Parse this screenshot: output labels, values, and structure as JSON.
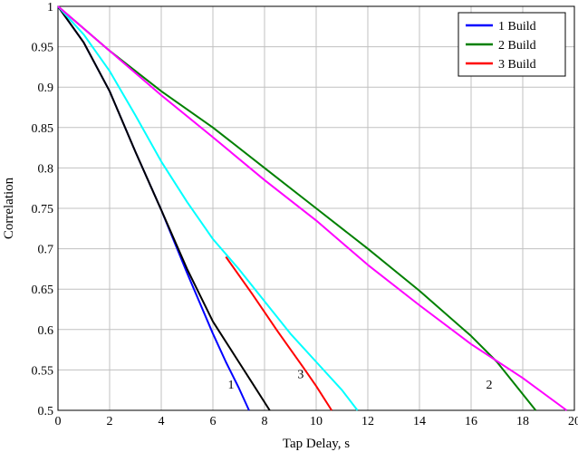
{
  "chart_data": {
    "type": "line",
    "xlabel": "Tap Delay, s",
    "ylabel": "Correlation",
    "xlim": [
      0,
      20
    ],
    "ylim": [
      0.5,
      1
    ],
    "x_ticks": [
      "0",
      "2",
      "4",
      "6",
      "8",
      "10",
      "12",
      "14",
      "16",
      "18",
      "20"
    ],
    "y_ticks": [
      "0.5",
      "0.55",
      "0.6",
      "0.65",
      "0.7",
      "0.75",
      "0.8",
      "0.85",
      "0.9",
      "0.95",
      "1"
    ],
    "grid": true,
    "legend_position": "top-right",
    "legend": [
      {
        "label": "1  Build",
        "color": "#0000ff"
      },
      {
        "label": "2  Build",
        "color": "#008000"
      },
      {
        "label": "3  Build",
        "color": "#ff0000"
      }
    ],
    "series": [
      {
        "name": "1  Build",
        "color": "#0000ff",
        "x": [
          0,
          1,
          2,
          3,
          4,
          5,
          6,
          6.5,
          7,
          7.4
        ],
        "y": [
          1,
          0.955,
          0.895,
          0.82,
          0.748,
          0.67,
          0.595,
          0.56,
          0.528,
          0.5
        ]
      },
      {
        "name": "",
        "color": "#000000",
        "x": [
          0,
          1,
          2,
          3,
          4,
          5,
          6,
          7,
          7.5,
          8.2
        ],
        "y": [
          1,
          0.955,
          0.895,
          0.82,
          0.748,
          0.675,
          0.61,
          0.56,
          0.535,
          0.5
        ]
      },
      {
        "name": "2  Build",
        "color": "#008000",
        "x": [
          0,
          2,
          4,
          6,
          8,
          10,
          12,
          14,
          16,
          17,
          18.5
        ],
        "y": [
          1,
          0.945,
          0.895,
          0.85,
          0.8,
          0.75,
          0.7,
          0.648,
          0.592,
          0.56,
          0.5
        ]
      },
      {
        "name": "3  Build",
        "color": "#ff0000",
        "x": [
          6.5,
          7.5,
          8.5,
          9.5,
          10,
          10.6
        ],
        "y": [
          0.69,
          0.645,
          0.598,
          0.553,
          0.53,
          0.5
        ]
      },
      {
        "name": "",
        "color": "#00ffff",
        "x": [
          0,
          1,
          2,
          3,
          4,
          5,
          6,
          7,
          8,
          9,
          10,
          11,
          11.6
        ],
        "y": [
          1,
          0.965,
          0.92,
          0.865,
          0.808,
          0.758,
          0.712,
          0.675,
          0.635,
          0.595,
          0.56,
          0.525,
          0.5
        ]
      },
      {
        "name": "",
        "color": "#ff00ff",
        "x": [
          0,
          2,
          4,
          6,
          8,
          10,
          12,
          14,
          16,
          18,
          19.7
        ],
        "y": [
          1,
          0.945,
          0.89,
          0.838,
          0.785,
          0.735,
          0.68,
          0.63,
          0.582,
          0.54,
          0.5
        ]
      }
    ],
    "annotations": [
      {
        "text": "1",
        "x": 6.7,
        "y": 0.527
      },
      {
        "text": "3",
        "x": 9.4,
        "y": 0.54
      },
      {
        "text": "2",
        "x": 16.7,
        "y": 0.527
      }
    ]
  }
}
